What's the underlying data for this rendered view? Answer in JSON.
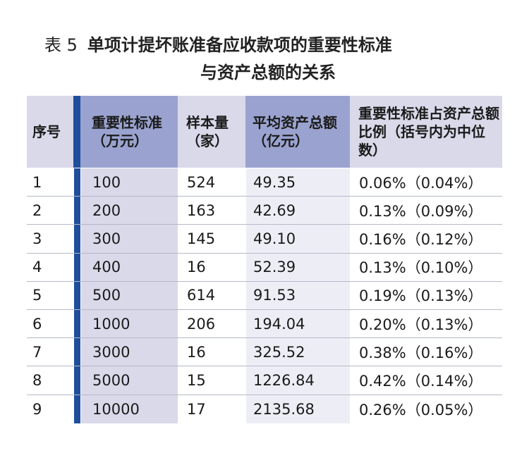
{
  "title": {
    "label": "表 5",
    "line1": "单项计提坏账准备应收款项的重要性标准",
    "line2": "与资产总额的关系"
  },
  "table": {
    "headers": [
      "序号",
      "重要性标准（万元）",
      "样本量（家）",
      "平均资产总额（亿元）",
      "重要性标准占资产总额比例（括号内为中位数）"
    ],
    "rows": [
      [
        "1",
        "100",
        "524",
        "49.35",
        "0.06%（0.04%）"
      ],
      [
        "2",
        "200",
        "163",
        "42.69",
        "0.13%（0.09%）"
      ],
      [
        "3",
        "300",
        "145",
        "49.10",
        "0.16%（0.12%）"
      ],
      [
        "4",
        "400",
        "16",
        "52.39",
        "0.13%（0.10%）"
      ],
      [
        "5",
        "500",
        "614",
        "91.53",
        "0.19%（0.13%）"
      ],
      [
        "6",
        "1000",
        "206",
        "194.04",
        "0.20%（0.13%）"
      ],
      [
        "7",
        "3000",
        "16",
        "325.52",
        "0.38%（0.16%）"
      ],
      [
        "8",
        "5000",
        "15",
        "1226.84",
        "0.42%（0.14%）"
      ],
      [
        "9",
        "10000",
        "17",
        "2135.68",
        "0.26%（0.05%）"
      ]
    ]
  },
  "colors": {
    "accent_bar": "#1f4f9c",
    "header_dark": "#9aa3cf",
    "header_light": "#d9d9ea"
  }
}
